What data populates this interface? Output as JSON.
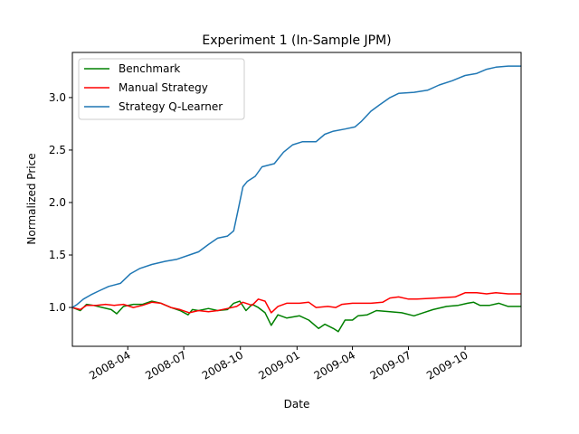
{
  "chart_data": {
    "type": "line",
    "title": "Experiment 1 (In-Sample JPM)",
    "xlabel": "Date",
    "ylabel": "Normalized Price",
    "xlim": [
      "2008-01-02",
      "2009-12-31"
    ],
    "ylim": [
      0.63,
      3.43
    ],
    "x_ticks": [
      "2008-04",
      "2008-07",
      "2008-10",
      "2009-01",
      "2009-04",
      "2009-07",
      "2009-10"
    ],
    "y_ticks": [
      "1.0",
      "1.5",
      "2.0",
      "2.5",
      "3.0"
    ],
    "legend_position": "upper-left",
    "series": [
      {
        "name": "Benchmark",
        "color": "#008000",
        "points": [
          [
            "2008-01-02",
            1.0
          ],
          [
            "2008-01-15",
            0.97
          ],
          [
            "2008-01-25",
            1.03
          ],
          [
            "2008-02-05",
            1.02
          ],
          [
            "2008-02-20",
            1.0
          ],
          [
            "2008-03-05",
            0.98
          ],
          [
            "2008-03-14",
            0.94
          ],
          [
            "2008-03-25",
            1.01
          ],
          [
            "2008-04-10",
            1.03
          ],
          [
            "2008-04-25",
            1.03
          ],
          [
            "2008-05-10",
            1.06
          ],
          [
            "2008-05-25",
            1.04
          ],
          [
            "2008-06-10",
            1.0
          ],
          [
            "2008-06-25",
            0.97
          ],
          [
            "2008-07-08",
            0.93
          ],
          [
            "2008-07-15",
            0.98
          ],
          [
            "2008-07-25",
            0.97
          ],
          [
            "2008-08-10",
            0.99
          ],
          [
            "2008-08-25",
            0.97
          ],
          [
            "2008-09-10",
            0.98
          ],
          [
            "2008-09-20",
            1.04
          ],
          [
            "2008-09-30",
            1.06
          ],
          [
            "2008-10-10",
            0.97
          ],
          [
            "2008-10-20",
            1.03
          ],
          [
            "2008-10-30",
            1.0
          ],
          [
            "2008-11-10",
            0.95
          ],
          [
            "2008-11-20",
            0.83
          ],
          [
            "2008-12-01",
            0.93
          ],
          [
            "2008-12-15",
            0.9
          ],
          [
            "2009-01-05",
            0.92
          ],
          [
            "2009-01-20",
            0.88
          ],
          [
            "2009-02-05",
            0.8
          ],
          [
            "2009-02-15",
            0.84
          ],
          [
            "2009-03-01",
            0.8
          ],
          [
            "2009-03-09",
            0.77
          ],
          [
            "2009-03-20",
            0.88
          ],
          [
            "2009-04-01",
            0.88
          ],
          [
            "2009-04-10",
            0.92
          ],
          [
            "2009-04-25",
            0.93
          ],
          [
            "2009-05-10",
            0.97
          ],
          [
            "2009-06-01",
            0.96
          ],
          [
            "2009-06-20",
            0.95
          ],
          [
            "2009-07-10",
            0.92
          ],
          [
            "2009-07-25",
            0.95
          ],
          [
            "2009-08-10",
            0.98
          ],
          [
            "2009-09-01",
            1.01
          ],
          [
            "2009-09-20",
            1.02
          ],
          [
            "2009-10-05",
            1.04
          ],
          [
            "2009-10-15",
            1.05
          ],
          [
            "2009-10-25",
            1.02
          ],
          [
            "2009-11-10",
            1.02
          ],
          [
            "2009-11-25",
            1.04
          ],
          [
            "2009-12-10",
            1.01
          ],
          [
            "2009-12-31",
            1.01
          ]
        ]
      },
      {
        "name": "Manual Strategy",
        "color": "#ff0000",
        "points": [
          [
            "2008-01-02",
            1.0
          ],
          [
            "2008-01-15",
            0.98
          ],
          [
            "2008-01-25",
            1.02
          ],
          [
            "2008-02-10",
            1.02
          ],
          [
            "2008-02-25",
            1.03
          ],
          [
            "2008-03-10",
            1.02
          ],
          [
            "2008-03-25",
            1.03
          ],
          [
            "2008-04-10",
            1.0
          ],
          [
            "2008-04-25",
            1.02
          ],
          [
            "2008-05-10",
            1.05
          ],
          [
            "2008-05-25",
            1.04
          ],
          [
            "2008-06-10",
            1.0
          ],
          [
            "2008-06-25",
            0.98
          ],
          [
            "2008-07-10",
            0.95
          ],
          [
            "2008-07-25",
            0.97
          ],
          [
            "2008-08-10",
            0.96
          ],
          [
            "2008-08-25",
            0.97
          ],
          [
            "2008-09-10",
            0.99
          ],
          [
            "2008-09-25",
            1.01
          ],
          [
            "2008-10-05",
            1.05
          ],
          [
            "2008-10-20",
            1.02
          ],
          [
            "2008-10-30",
            1.08
          ],
          [
            "2008-11-10",
            1.06
          ],
          [
            "2008-11-20",
            0.95
          ],
          [
            "2008-12-01",
            1.01
          ],
          [
            "2008-12-15",
            1.04
          ],
          [
            "2009-01-05",
            1.04
          ],
          [
            "2009-01-20",
            1.05
          ],
          [
            "2009-02-01",
            1.0
          ],
          [
            "2009-02-20",
            1.01
          ],
          [
            "2009-03-05",
            1.0
          ],
          [
            "2009-03-15",
            1.03
          ],
          [
            "2009-04-01",
            1.04
          ],
          [
            "2009-05-01",
            1.04
          ],
          [
            "2009-05-20",
            1.05
          ],
          [
            "2009-06-01",
            1.09
          ],
          [
            "2009-06-15",
            1.1
          ],
          [
            "2009-07-01",
            1.08
          ],
          [
            "2009-07-15",
            1.08
          ],
          [
            "2009-08-15",
            1.09
          ],
          [
            "2009-09-15",
            1.1
          ],
          [
            "2009-10-01",
            1.14
          ],
          [
            "2009-10-20",
            1.14
          ],
          [
            "2009-11-05",
            1.13
          ],
          [
            "2009-11-20",
            1.14
          ],
          [
            "2009-12-10",
            1.13
          ],
          [
            "2009-12-31",
            1.13
          ]
        ]
      },
      {
        "name": "Strategy Q-Learner",
        "color": "#1f77b4",
        "points": [
          [
            "2008-01-02",
            1.0
          ],
          [
            "2008-01-10",
            1.03
          ],
          [
            "2008-01-20",
            1.08
          ],
          [
            "2008-02-01",
            1.12
          ],
          [
            "2008-02-15",
            1.16
          ],
          [
            "2008-03-01",
            1.2
          ],
          [
            "2008-03-20",
            1.23
          ],
          [
            "2008-04-05",
            1.32
          ],
          [
            "2008-04-20",
            1.37
          ],
          [
            "2008-05-10",
            1.41
          ],
          [
            "2008-06-01",
            1.44
          ],
          [
            "2008-06-20",
            1.46
          ],
          [
            "2008-07-10",
            1.5
          ],
          [
            "2008-07-25",
            1.53
          ],
          [
            "2008-08-10",
            1.6
          ],
          [
            "2008-08-25",
            1.66
          ],
          [
            "2008-09-10",
            1.68
          ],
          [
            "2008-09-20",
            1.73
          ],
          [
            "2008-09-28",
            1.95
          ],
          [
            "2008-10-05",
            2.15
          ],
          [
            "2008-10-12",
            2.2
          ],
          [
            "2008-10-25",
            2.25
          ],
          [
            "2008-11-05",
            2.34
          ],
          [
            "2008-11-25",
            2.37
          ],
          [
            "2008-12-10",
            2.48
          ],
          [
            "2008-12-25",
            2.55
          ],
          [
            "2009-01-10",
            2.58
          ],
          [
            "2009-02-01",
            2.58
          ],
          [
            "2009-02-15",
            2.65
          ],
          [
            "2009-03-01",
            2.68
          ],
          [
            "2009-03-20",
            2.7
          ],
          [
            "2009-04-05",
            2.72
          ],
          [
            "2009-04-15",
            2.77
          ],
          [
            "2009-05-01",
            2.87
          ],
          [
            "2009-05-15",
            2.93
          ],
          [
            "2009-06-01",
            3.0
          ],
          [
            "2009-06-15",
            3.04
          ],
          [
            "2009-07-10",
            3.05
          ],
          [
            "2009-08-01",
            3.07
          ],
          [
            "2009-08-20",
            3.12
          ],
          [
            "2009-09-10",
            3.16
          ],
          [
            "2009-10-01",
            3.21
          ],
          [
            "2009-10-20",
            3.23
          ],
          [
            "2009-11-05",
            3.27
          ],
          [
            "2009-11-20",
            3.29
          ],
          [
            "2009-12-10",
            3.3
          ],
          [
            "2009-12-31",
            3.3
          ]
        ]
      }
    ]
  }
}
